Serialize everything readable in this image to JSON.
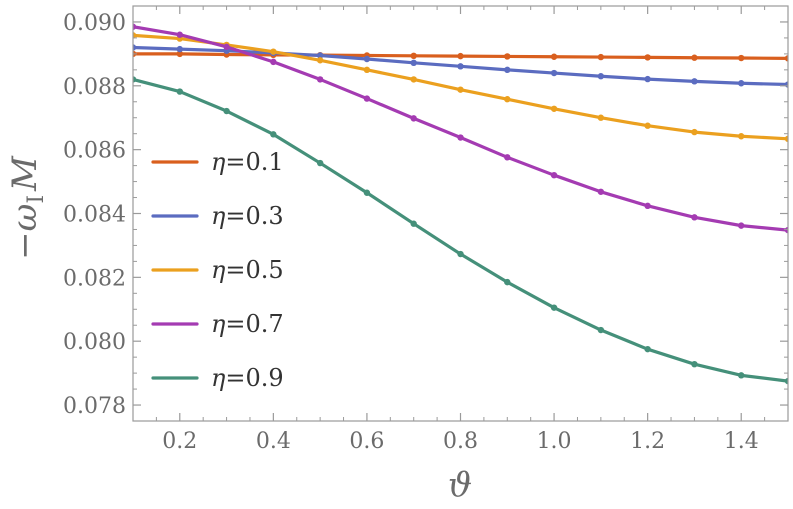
{
  "chart_data": {
    "type": "line",
    "title": "",
    "xlabel": "ϑ",
    "ylabel_parts": {
      "minus": "−",
      "omega": "ω",
      "sub": "I",
      "mass": "M"
    },
    "xlim": [
      0.1,
      1.5
    ],
    "ylim": [
      0.0775,
      0.0905
    ],
    "x_ticks": [
      0.2,
      0.4,
      0.6,
      0.8,
      1.0,
      1.2,
      1.4
    ],
    "x_tick_labels": [
      "0.2",
      "0.4",
      "0.6",
      "0.8",
      "1.0",
      "1.2",
      "1.4"
    ],
    "y_ticks": [
      0.078,
      0.08,
      0.082,
      0.084,
      0.086,
      0.088,
      0.09
    ],
    "y_tick_labels": [
      "0.078",
      "0.080",
      "0.082",
      "0.084",
      "0.086",
      "0.088",
      "0.090"
    ],
    "grid": false,
    "legend_position": "left-middle",
    "x": [
      0.1,
      0.2,
      0.3,
      0.4,
      0.5,
      0.6,
      0.7,
      0.8,
      0.9,
      1.0,
      1.1,
      1.2,
      1.3,
      1.4,
      1.5
    ],
    "series": [
      {
        "name": "η=0.1",
        "eta_symbol": "η",
        "eta_value": "=0.1",
        "color": "#d95f1e",
        "values": [
          0.089,
          0.089,
          0.08898,
          0.08897,
          0.08896,
          0.08895,
          0.08894,
          0.08893,
          0.08892,
          0.08891,
          0.0889,
          0.08889,
          0.08888,
          0.08887,
          0.08886
        ]
      },
      {
        "name": "η=0.3",
        "eta_symbol": "η",
        "eta_value": "=0.3",
        "color": "#5b6cc0",
        "values": [
          0.0892,
          0.08915,
          0.0891,
          0.08903,
          0.08895,
          0.08884,
          0.08872,
          0.08861,
          0.0885,
          0.0884,
          0.0883,
          0.08821,
          0.08814,
          0.08808,
          0.08804
        ]
      },
      {
        "name": "η=0.5",
        "eta_symbol": "η",
        "eta_value": "=0.5",
        "color": "#eba01f",
        "values": [
          0.08958,
          0.08948,
          0.08928,
          0.08907,
          0.0888,
          0.0885,
          0.0882,
          0.08788,
          0.08758,
          0.08728,
          0.087,
          0.08675,
          0.08655,
          0.08642,
          0.08634
        ]
      },
      {
        "name": "η=0.7",
        "eta_symbol": "η",
        "eta_value": "=0.7",
        "color": "#a43bb2",
        "values": [
          0.08985,
          0.0896,
          0.08922,
          0.08875,
          0.0882,
          0.0876,
          0.08698,
          0.08638,
          0.08576,
          0.0852,
          0.08468,
          0.08424,
          0.08388,
          0.08362,
          0.08348
        ]
      },
      {
        "name": "η=0.9",
        "eta_symbol": "η",
        "eta_value": "=0.9",
        "color": "#45907a",
        "values": [
          0.0882,
          0.08782,
          0.08721,
          0.08648,
          0.08558,
          0.08465,
          0.08368,
          0.08273,
          0.08185,
          0.08105,
          0.08035,
          0.07975,
          0.07928,
          0.07893,
          0.07875
        ]
      }
    ]
  }
}
